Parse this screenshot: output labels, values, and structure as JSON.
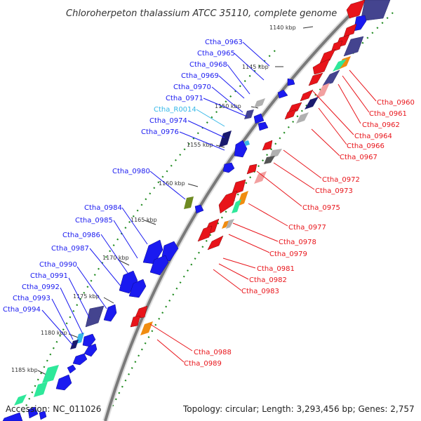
{
  "title": "Chloroherpeton thalassium ATCC 35110, complete genome",
  "accession": "Accession: NC_011026",
  "summary": "Topology: circular; Length: 3,293,456 bp; Genes: 2,757",
  "colors": {
    "forward": "#1a1af0",
    "reverse": "#e8141a",
    "rna": "#36b8e8",
    "cog_purple": "#44448f",
    "cog_green": "#2ee89a",
    "cog_orange": "#f08c10",
    "cog_olive": "#6e8a22",
    "cog_pink": "#f2a0a0",
    "cog_grey": "#b0b0b0",
    "backbone": "#888888"
  },
  "ticks": [
    "1140 kbp",
    "1145 kbp",
    "1150 kbp",
    "1155 kbp",
    "1160 kbp",
    "1165 kbp",
    "1170 kbp",
    "1175 kbp",
    "1180 kbp",
    "1185 kbp"
  ],
  "forward_genes": [
    "Ctha_0963",
    "Ctha_0965",
    "Ctha_0968",
    "Ctha_0969",
    "Ctha_0970",
    "Ctha_0971",
    "Ctha_R0014",
    "Ctha_0974",
    "Ctha_0976",
    "Ctha_0980",
    "Ctha_0984",
    "Ctha_0985",
    "Ctha_0986",
    "Ctha_0987",
    "Ctha_0990",
    "Ctha_0991",
    "Ctha_0992",
    "Ctha_0993",
    "Ctha_0994"
  ],
  "reverse_genes": [
    "Ctha_0960",
    "Ctha_0961",
    "Ctha_0962",
    "Ctha_0964",
    "Ctha_0966",
    "Ctha_0967",
    "Ctha_0972",
    "Ctha_0973",
    "Ctha_0975",
    "Ctha_0977",
    "Ctha_0978",
    "Ctha_0979",
    "Ctha_0981",
    "Ctha_0982",
    "Ctha_0983",
    "Ctha_0988",
    "Ctha_0989"
  ]
}
